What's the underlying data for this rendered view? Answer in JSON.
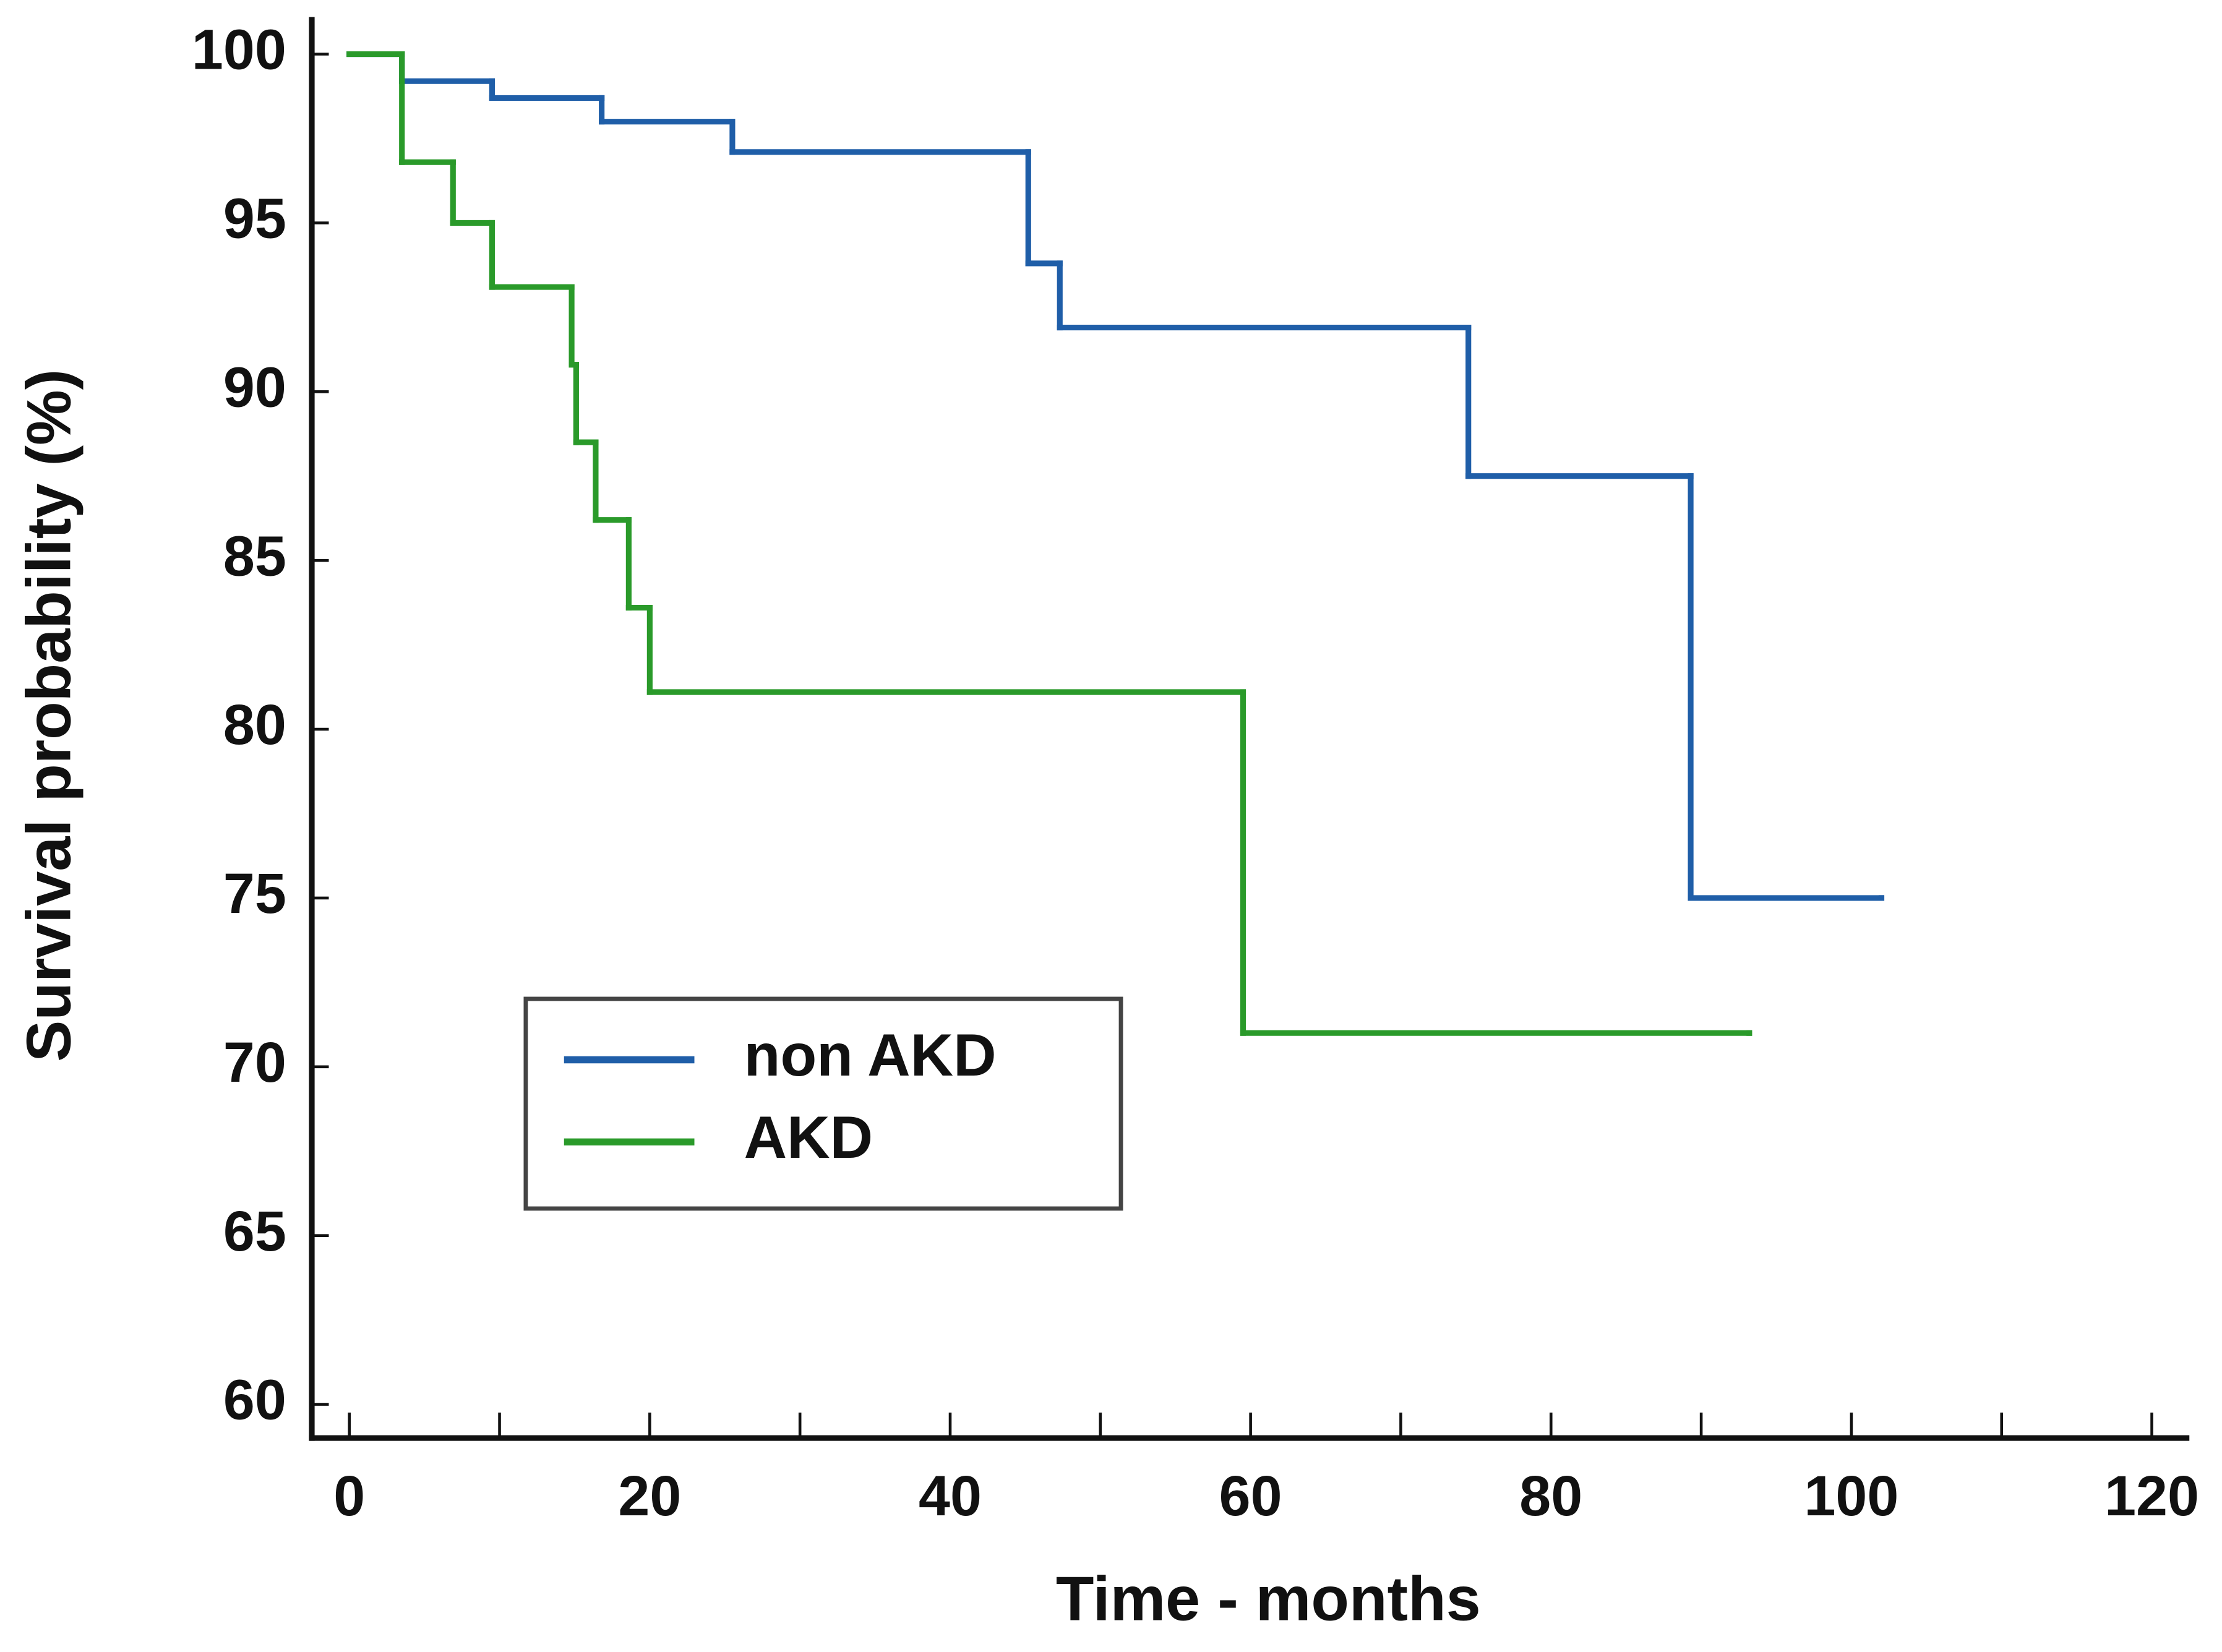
{
  "chart_data": {
    "type": "step",
    "xlabel": "Time - months",
    "ylabel": "Survival probability (%)",
    "xlim": [
      -2.5,
      122.5
    ],
    "ylim": [
      59,
      101.1
    ],
    "xticks": [
      0,
      20,
      40,
      60,
      80,
      100,
      120
    ],
    "xminor_ticks": [
      10,
      30,
      50,
      70,
      90,
      110
    ],
    "yticks": [
      60,
      65,
      70,
      75,
      80,
      85,
      90,
      95,
      100
    ],
    "legend": "lower left",
    "series": [
      {
        "name": "non AKD",
        "color": "#1f5ea8",
        "x": [
          0,
          3.5,
          9.5,
          16.8,
          25.5,
          45.2,
          47.3,
          74.5,
          89.3,
          102
        ],
        "values": [
          100,
          99.2,
          98.7,
          98.0,
          97.1,
          93.8,
          91.9,
          87.5,
          75,
          75
        ]
      },
      {
        "name": "AKD",
        "color": "#2a9a2a",
        "x": [
          0,
          3.5,
          6.9,
          9.5,
          14.8,
          15.1,
          16.4,
          18.6,
          20,
          59.5,
          93.2
        ],
        "values": [
          100,
          96.8,
          95,
          93.1,
          90.8,
          88.5,
          86.2,
          83.6,
          81.1,
          71,
          71
        ]
      }
    ]
  }
}
